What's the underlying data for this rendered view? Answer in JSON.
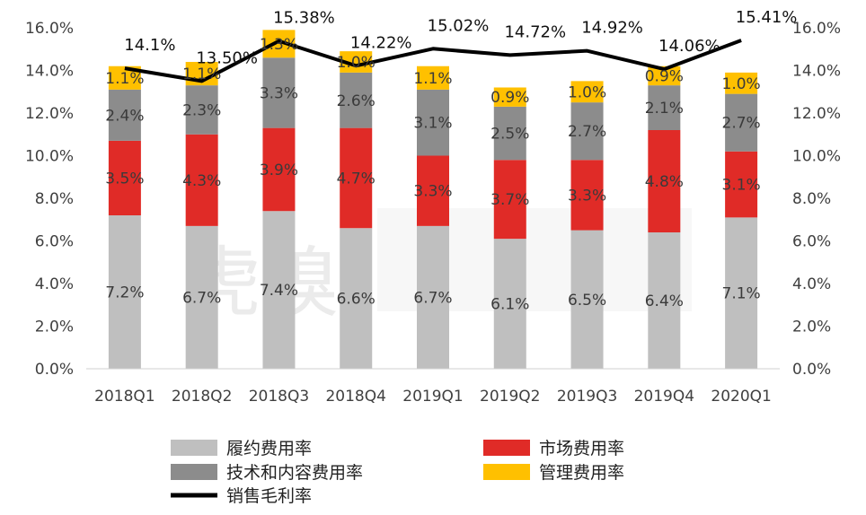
{
  "chart_data": {
    "type": "bar",
    "stacked": true,
    "categories": [
      "2018Q1",
      "2018Q2",
      "2018Q3",
      "2018Q4",
      "2019Q1",
      "2019Q2",
      "2019Q3",
      "2019Q4",
      "2020Q1"
    ],
    "series": [
      {
        "name": "履约费用率",
        "values": [
          7.2,
          6.7,
          7.4,
          6.6,
          6.7,
          6.1,
          6.5,
          6.4,
          7.1
        ],
        "color": "#bfbfbf",
        "labels": [
          "7.2%",
          "6.7%",
          "7.4%",
          "6.6%",
          "6.7%",
          "6.1%",
          "6.5%",
          "6.4%",
          "7.1%"
        ]
      },
      {
        "name": "市场费用率",
        "values": [
          3.5,
          4.3,
          3.9,
          4.7,
          3.3,
          3.7,
          3.3,
          4.8,
          3.1
        ],
        "color": "#e02b27",
        "labels": [
          "3.5%",
          "4.3%",
          "3.9%",
          "4.7%",
          "3.3%",
          "3.7%",
          "3.3%",
          "4.8%",
          "3.1%"
        ]
      },
      {
        "name": "技术和内容费用率",
        "values": [
          2.4,
          2.3,
          3.3,
          2.6,
          3.1,
          2.5,
          2.7,
          2.1,
          2.7
        ],
        "color": "#8c8c8c",
        "labels": [
          "2.4%",
          "2.3%",
          "3.3%",
          "2.6%",
          "3.1%",
          "2.5%",
          "2.7%",
          "2.1%",
          "2.7%"
        ]
      },
      {
        "name": "管理费用率",
        "values": [
          1.1,
          1.1,
          1.3,
          1.0,
          1.1,
          0.9,
          1.0,
          0.9,
          1.0
        ],
        "color": "#ffc000",
        "labels": [
          "1.1%",
          "1.1%",
          "1.3%",
          "1.0%",
          "1.1%",
          "0.9%",
          "1.0%",
          "0.9%",
          "1.0%"
        ]
      }
    ],
    "line": {
      "name": "销售毛利率",
      "values": [
        14.1,
        13.5,
        15.38,
        14.22,
        15.02,
        14.72,
        14.92,
        14.06,
        15.41
      ],
      "color": "#000000",
      "labels": [
        "14.1%",
        "13.50%",
        "15.38%",
        "14.22%",
        "15.02%",
        "14.72%",
        "14.92%",
        "14.06%",
        "15.41%"
      ]
    },
    "left_axis": {
      "ylim": [
        0,
        16
      ],
      "ticks": [
        "0.0%",
        "2.0%",
        "4.0%",
        "6.0%",
        "8.0%",
        "10.0%",
        "12.0%",
        "14.0%",
        "16.0%"
      ]
    },
    "right_axis": {
      "ylim": [
        0,
        16
      ],
      "ticks": [
        "0.0%",
        "2.0%",
        "4.0%",
        "6.0%",
        "8.0%",
        "10.0%",
        "12.0%",
        "14.0%",
        "16.0%"
      ]
    },
    "grid": false,
    "legend_position": "bottom"
  },
  "watermark": {
    "text": "虎嗅"
  }
}
